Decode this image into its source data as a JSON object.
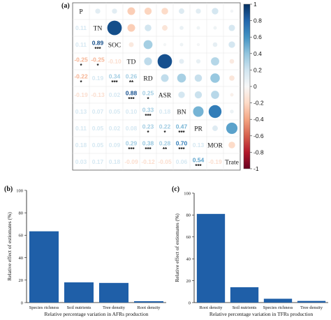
{
  "chart_data": [
    {
      "panel": "(a)",
      "type": "heatmap",
      "variables": [
        "P",
        "TN",
        "SOC",
        "TD",
        "RD",
        "ASR",
        "BN",
        "PR",
        "MOR",
        "Trate"
      ],
      "colorbar": {
        "ticks": [
          "1",
          "0.8",
          "0.6",
          "0.4",
          "0.2",
          "0",
          "-0.2",
          "-0.4",
          "-0.6",
          "-0.8",
          "-1"
        ],
        "range": [
          -1,
          1
        ]
      },
      "lower": [
        {
          "r": 1,
          "c": 0,
          "v": 0.11,
          "label": "0.11",
          "sig": ""
        },
        {
          "r": 2,
          "c": 0,
          "v": 0.11,
          "label": "0.11",
          "sig": ""
        },
        {
          "r": 2,
          "c": 1,
          "v": 0.89,
          "label": "0.89",
          "sig": "***"
        },
        {
          "r": 3,
          "c": 0,
          "v": -0.25,
          "label": "-0.25",
          "sig": "*"
        },
        {
          "r": 3,
          "c": 1,
          "v": -0.25,
          "label": "-0.25",
          "sig": "*"
        },
        {
          "r": 3,
          "c": 2,
          "v": -0.1,
          "label": "-0.10",
          "sig": ""
        },
        {
          "r": 4,
          "c": 0,
          "v": -0.22,
          "label": "-0.22",
          "sig": "*"
        },
        {
          "r": 4,
          "c": 1,
          "v": 0.19,
          "label": "0.19",
          "sig": ""
        },
        {
          "r": 4,
          "c": 2,
          "v": 0.34,
          "label": "0.34",
          "sig": "***"
        },
        {
          "r": 4,
          "c": 3,
          "v": 0.26,
          "label": "0.26",
          "sig": "**"
        },
        {
          "r": 5,
          "c": 0,
          "v": -0.19,
          "label": "-0.19",
          "sig": ""
        },
        {
          "r": 5,
          "c": 1,
          "v": -0.13,
          "label": "-0.13",
          "sig": ""
        },
        {
          "r": 5,
          "c": 2,
          "v": 0.02,
          "label": "0.02",
          "sig": ""
        },
        {
          "r": 5,
          "c": 3,
          "v": 0.88,
          "label": "0.88",
          "sig": "***"
        },
        {
          "r": 5,
          "c": 4,
          "v": 0.25,
          "label": "0.25",
          "sig": "*"
        },
        {
          "r": 6,
          "c": 0,
          "v": 0.13,
          "label": "0.13",
          "sig": ""
        },
        {
          "r": 6,
          "c": 1,
          "v": 0.07,
          "label": "0.07",
          "sig": ""
        },
        {
          "r": 6,
          "c": 2,
          "v": 0.05,
          "label": "0.05",
          "sig": ""
        },
        {
          "r": 6,
          "c": 3,
          "v": 0.1,
          "label": "0.10",
          "sig": ""
        },
        {
          "r": 6,
          "c": 4,
          "v": 0.33,
          "label": "0.33",
          "sig": "***"
        },
        {
          "r": 6,
          "c": 5,
          "v": 0.18,
          "label": "0.18",
          "sig": ""
        },
        {
          "r": 7,
          "c": 0,
          "v": 0.11,
          "label": "0.11",
          "sig": ""
        },
        {
          "r": 7,
          "c": 1,
          "v": 0.05,
          "label": "0.05",
          "sig": ""
        },
        {
          "r": 7,
          "c": 2,
          "v": 0.02,
          "label": "0.02",
          "sig": ""
        },
        {
          "r": 7,
          "c": 3,
          "v": 0.08,
          "label": "0.08",
          "sig": ""
        },
        {
          "r": 7,
          "c": 4,
          "v": 0.23,
          "label": "0.23",
          "sig": "*"
        },
        {
          "r": 7,
          "c": 5,
          "v": 0.22,
          "label": "0.22",
          "sig": "*"
        },
        {
          "r": 7,
          "c": 6,
          "v": 0.47,
          "label": "0.47",
          "sig": "***"
        },
        {
          "r": 8,
          "c": 0,
          "v": 0.18,
          "label": "0.18",
          "sig": ""
        },
        {
          "r": 8,
          "c": 1,
          "v": 0.05,
          "label": "0.05",
          "sig": ""
        },
        {
          "r": 8,
          "c": 2,
          "v": 0.09,
          "label": "0.09",
          "sig": ""
        },
        {
          "r": 8,
          "c": 3,
          "v": 0.29,
          "label": "0.29",
          "sig": "***"
        },
        {
          "r": 8,
          "c": 4,
          "v": 0.38,
          "label": "0.38",
          "sig": "***"
        },
        {
          "r": 8,
          "c": 5,
          "v": 0.28,
          "label": "0.28",
          "sig": "**"
        },
        {
          "r": 8,
          "c": 6,
          "v": 0.7,
          "label": "0.70",
          "sig": "***"
        },
        {
          "r": 8,
          "c": 7,
          "v": 0.13,
          "label": "0.13",
          "sig": ""
        },
        {
          "r": 9,
          "c": 0,
          "v": 0.03,
          "label": "0.03",
          "sig": ""
        },
        {
          "r": 9,
          "c": 1,
          "v": 0.17,
          "label": "0.17",
          "sig": ""
        },
        {
          "r": 9,
          "c": 2,
          "v": 0.18,
          "label": "0.18",
          "sig": ""
        },
        {
          "r": 9,
          "c": 3,
          "v": -0.09,
          "label": "-0.09",
          "sig": ""
        },
        {
          "r": 9,
          "c": 4,
          "v": -0.12,
          "label": "-0.12",
          "sig": ""
        },
        {
          "r": 9,
          "c": 5,
          "v": -0.05,
          "label": "-0.05",
          "sig": ""
        },
        {
          "r": 9,
          "c": 6,
          "v": 0.06,
          "label": "0.06",
          "sig": ""
        },
        {
          "r": 9,
          "c": 7,
          "v": 0.54,
          "label": "0.54",
          "sig": "***"
        },
        {
          "r": 9,
          "c": 8,
          "v": -0.19,
          "label": "-0.19",
          "sig": ""
        }
      ]
    },
    {
      "panel": "(b)",
      "type": "bar",
      "categories": [
        "Species richness",
        "Soil nutrients",
        "Tree density",
        "Root density"
      ],
      "values": [
        63.5,
        18,
        17.5,
        1.2
      ],
      "ylabel": "Relative effect of estiomates (%)",
      "xlabel": "Relative percentage variation in AFRs production",
      "ylim": [
        0,
        100
      ],
      "yticks": [
        0,
        20,
        40,
        60,
        80,
        100
      ],
      "color": "#1f5fa8"
    },
    {
      "panel": "(c)",
      "type": "bar",
      "categories": [
        "Root density",
        "Soil nutrients",
        "Species richness",
        "Tree density"
      ],
      "values": [
        81,
        14,
        3.5,
        1.5
      ],
      "ylabel": "Relative effect of estiomates (%)",
      "xlabel": "Relative percentage variation in TFRs production",
      "ylim": [
        0,
        100
      ],
      "yticks": [
        0,
        20,
        40,
        60,
        80,
        100
      ],
      "color": "#1f5fa8"
    }
  ]
}
